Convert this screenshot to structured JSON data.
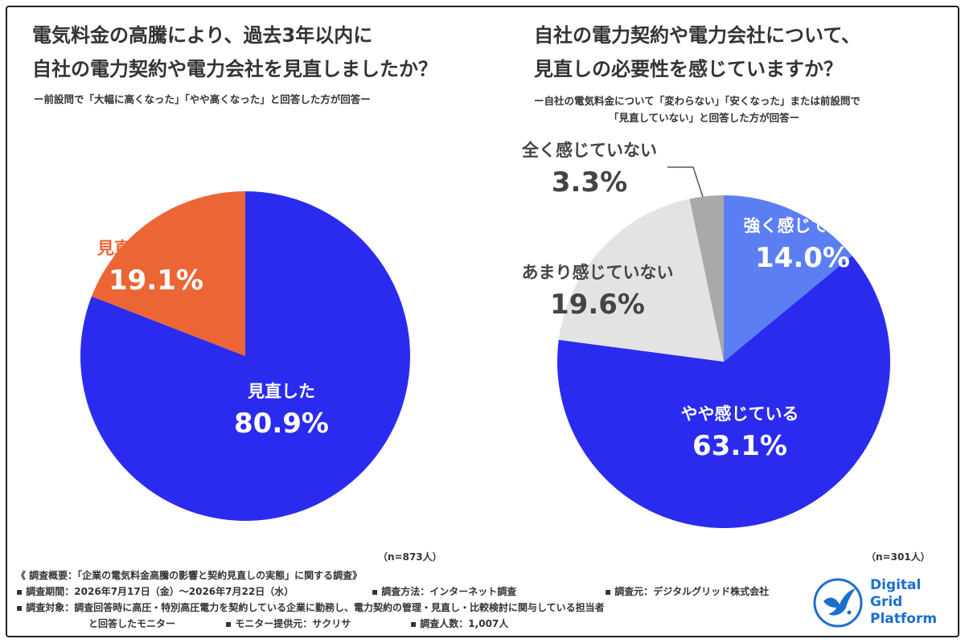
{
  "left": {
    "title_line1": "電気料金の高騰により、過去3年以内に",
    "title_line2": "自社の電力契約や電力会社を見直しましたか？",
    "subtitle": "ー前設問で「大幅に高くなった」「やや高くなった」と回答した方が回答ー",
    "n_label": "（n=873人）"
  },
  "right": {
    "title_line1": "自社の電力契約や電力会社について、",
    "title_line2": "見直しの必要性を感じていますか？",
    "subtitle_line1": "ー自社の電気料金について「変わらない」「安くなった」または前設問で",
    "subtitle_line2": "「見直していない」と回答した方が回答ー",
    "n_label": "（n=301人）"
  },
  "chart_data": [
    {
      "type": "pie",
      "slices": [
        {
          "label": "見直した",
          "value": 80.9,
          "pct_text": "80.9%",
          "color": "#2b2bf0",
          "label_color": "#ffffff"
        },
        {
          "label": "見直していない",
          "value": 19.1,
          "pct_text": "19.1%",
          "color": "#ec6535",
          "label_color": "#ec6535",
          "pct_color": "#ffffff"
        }
      ]
    },
    {
      "type": "pie",
      "slices": [
        {
          "label": "強く感じている",
          "value": 14.0,
          "pct_text": "14.0%",
          "color": "#5b7ff3",
          "label_color": "#ffffff"
        },
        {
          "label": "やや感じている",
          "value": 63.1,
          "pct_text": "63.1%",
          "color": "#2b2bf0",
          "label_color": "#ffffff"
        },
        {
          "label": "あまり感じていない",
          "value": 19.6,
          "pct_text": "19.6%",
          "color": "#e3e3e3",
          "label_color": "#444444"
        },
        {
          "label": "全く感じていない",
          "value": 3.3,
          "pct_text": "3.3%",
          "color": "#a9a9a9",
          "label_color": "#444444"
        }
      ]
    }
  ],
  "footer": {
    "overview": "《 調査概要：「企業の電気料金高騰の影響と契約見直しの実態」に関する調査》",
    "period": "▪ 調査期間：2026年7月17日（金）〜2026年7月22日（水）",
    "method": "▪ 調査方法：インターネット調査",
    "source": "▪ 調査元：デジタルグリッド株式会社",
    "target_line1": "▪ 調査対象：調査回答時に高圧・特別高圧電力を契約している企業に勤務し、電力契約の管理・見直し・比較検討に関与している担当者",
    "target_line2": "と回答したモニター",
    "provider": "▪ モニター提供元：サクリサ",
    "count": "▪ 調査人数：1,007人"
  },
  "logo": {
    "line1": "Digital",
    "line2": "Grid",
    "line3": "Platform",
    "icon": "bird-circle-icon",
    "color": "#1a6fd1"
  }
}
